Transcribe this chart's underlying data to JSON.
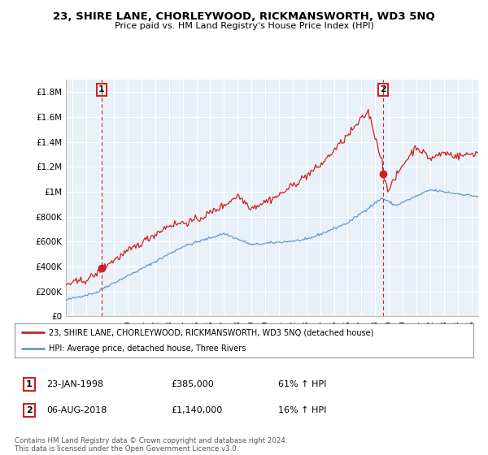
{
  "title": "23, SHIRE LANE, CHORLEYWOOD, RICKMANSWORTH, WD3 5NQ",
  "subtitle": "Price paid vs. HM Land Registry's House Price Index (HPI)",
  "background_color": "#ffffff",
  "plot_bg_color": "#e8f0f8",
  "grid_color": "#ffffff",
  "hpi_color": "#6699cc",
  "price_color": "#cc2222",
  "legend_line1": "23, SHIRE LANE, CHORLEYWOOD, RICKMANSWORTH, WD3 5NQ (detached house)",
  "legend_line2": "HPI: Average price, detached house, Three Rivers",
  "footer": "Contains HM Land Registry data © Crown copyright and database right 2024.\nThis data is licensed under the Open Government Licence v3.0.",
  "ylim": [
    0,
    1900000
  ],
  "yticks": [
    0,
    200000,
    400000,
    600000,
    800000,
    1000000,
    1200000,
    1400000,
    1600000,
    1800000
  ],
  "ytick_labels": [
    "£0",
    "£200K",
    "£400K",
    "£600K",
    "£800K",
    "£1M",
    "£1.2M",
    "£1.4M",
    "£1.6M",
    "£1.8M"
  ],
  "yr1": 1998.08,
  "val1": 385000,
  "yr2": 2018.58,
  "val2": 1140000
}
